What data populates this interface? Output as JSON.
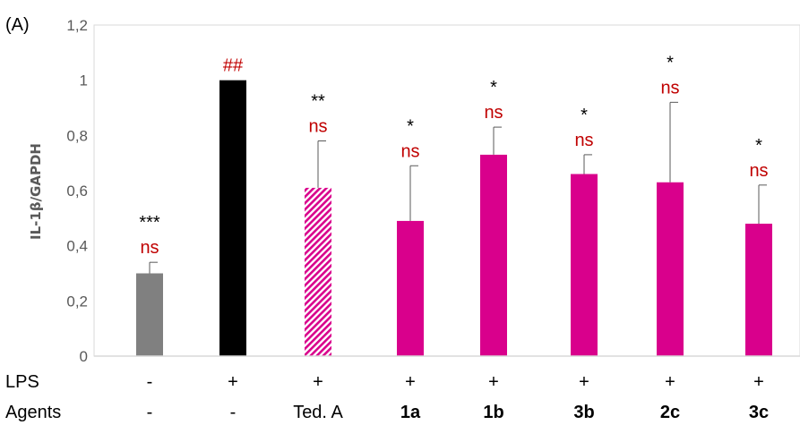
{
  "chart_data": {
    "type": "bar",
    "panel_label": "(A)",
    "ylabel": "IL-1β/GAPDH",
    "ylim": [
      0,
      1.2
    ],
    "yticks": [
      "0",
      "0,2",
      "0,4",
      "0,6",
      "0,8",
      "1",
      "1,2"
    ],
    "grid": false,
    "row_titles": [
      "LPS",
      "Agents"
    ],
    "bars": [
      {
        "lps": "-",
        "agent": "-",
        "agent_bold": false,
        "value": 0.3,
        "error": 0.04,
        "color": "#808080",
        "pattern": "solid",
        "annotations": [
          {
            "text": "***",
            "kind": "star"
          },
          {
            "text": "ns",
            "kind": "ns"
          }
        ]
      },
      {
        "lps": "+",
        "agent": "-",
        "agent_bold": false,
        "value": 1.0,
        "error": 0.0,
        "color": "#000000",
        "pattern": "solid",
        "annotations": [
          {
            "text": "##",
            "kind": "hash"
          }
        ]
      },
      {
        "lps": "+",
        "agent": "Ted. A",
        "agent_bold": false,
        "value": 0.61,
        "error": 0.17,
        "color": "#d9008c",
        "pattern": "hatched",
        "annotations": [
          {
            "text": "**",
            "kind": "star"
          },
          {
            "text": "ns",
            "kind": "ns"
          }
        ]
      },
      {
        "lps": "+",
        "agent": "1a",
        "agent_bold": true,
        "value": 0.49,
        "error": 0.2,
        "color": "#d9008c",
        "pattern": "solid",
        "annotations": [
          {
            "text": "*",
            "kind": "star"
          },
          {
            "text": "ns",
            "kind": "ns"
          }
        ]
      },
      {
        "lps": "+",
        "agent": "1b",
        "agent_bold": true,
        "value": 0.73,
        "error": 0.1,
        "color": "#d9008c",
        "pattern": "solid",
        "annotations": [
          {
            "text": "*",
            "kind": "star"
          },
          {
            "text": "ns",
            "kind": "ns"
          }
        ]
      },
      {
        "lps": "+",
        "agent": "3b",
        "agent_bold": true,
        "value": 0.66,
        "error": 0.07,
        "color": "#d9008c",
        "pattern": "solid",
        "annotations": [
          {
            "text": "*",
            "kind": "star"
          },
          {
            "text": "ns",
            "kind": "ns"
          }
        ]
      },
      {
        "lps": "+",
        "agent": "2c",
        "agent_bold": true,
        "value": 0.63,
        "error": 0.29,
        "color": "#d9008c",
        "pattern": "solid",
        "annotations": [
          {
            "text": "*",
            "kind": "star"
          },
          {
            "text": "ns",
            "kind": "ns"
          }
        ]
      },
      {
        "lps": "+",
        "agent": "3c",
        "agent_bold": true,
        "value": 0.48,
        "error": 0.14,
        "color": "#d9008c",
        "pattern": "solid",
        "annotations": [
          {
            "text": "*",
            "kind": "star"
          },
          {
            "text": "ns",
            "kind": "ns"
          }
        ]
      }
    ]
  }
}
